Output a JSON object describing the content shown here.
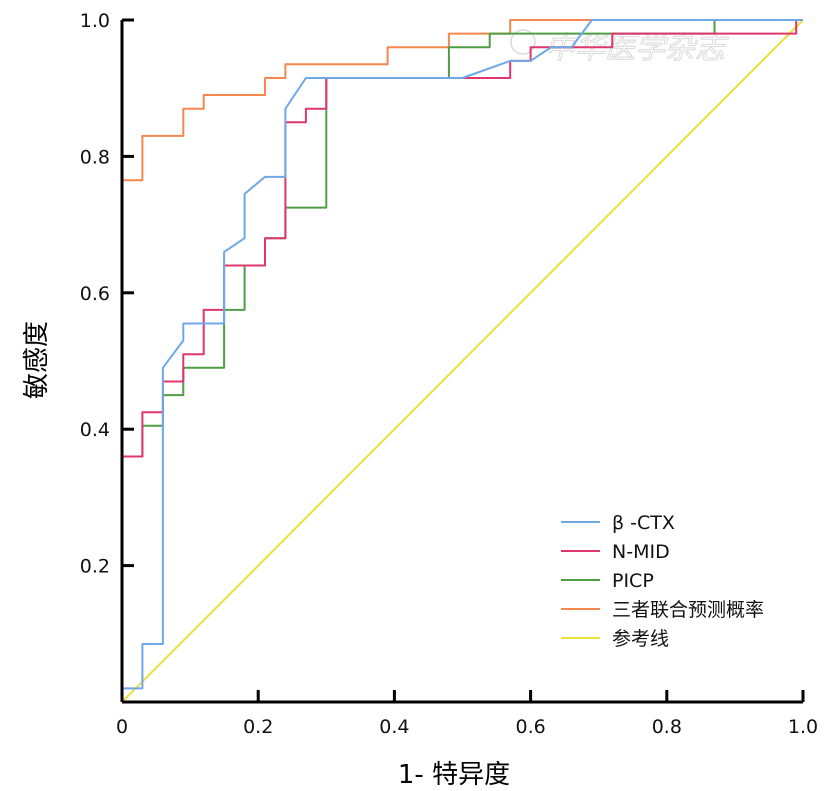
{
  "chart_data": {
    "type": "line",
    "title": "",
    "xlabel": "1- 特异度",
    "ylabel": "敏感度",
    "xlim": [
      0,
      1.0
    ],
    "ylim": [
      0,
      1.0
    ],
    "x_ticks": [
      "0",
      "0.2",
      "0.4",
      "0.6",
      "0.8",
      "1.0"
    ],
    "y_ticks": [
      "0.2",
      "0.4",
      "0.6",
      "0.8",
      "1.0"
    ],
    "legend_position": "bottom-right",
    "watermark": "中华医学杂志",
    "series": [
      {
        "name": "β -CTX",
        "color": "#6fa8e8",
        "points": [
          [
            0,
            0.02
          ],
          [
            0.03,
            0.02
          ],
          [
            0.03,
            0.085
          ],
          [
            0.06,
            0.085
          ],
          [
            0.06,
            0.49
          ],
          [
            0.09,
            0.53
          ],
          [
            0.09,
            0.555
          ],
          [
            0.15,
            0.555
          ],
          [
            0.15,
            0.66
          ],
          [
            0.18,
            0.68
          ],
          [
            0.18,
            0.745
          ],
          [
            0.21,
            0.77
          ],
          [
            0.24,
            0.77
          ],
          [
            0.24,
            0.87
          ],
          [
            0.27,
            0.915
          ],
          [
            0.3,
            0.915
          ],
          [
            0.48,
            0.915
          ],
          [
            0.5,
            0.915
          ],
          [
            0.57,
            0.94
          ],
          [
            0.6,
            0.94
          ],
          [
            0.63,
            0.96
          ],
          [
            0.66,
            0.96
          ],
          [
            0.69,
            1.0
          ],
          [
            1.0,
            1.0
          ]
        ]
      },
      {
        "name": "N-MID",
        "color": "#e0366e",
        "points": [
          [
            0,
            0.36
          ],
          [
            0.03,
            0.36
          ],
          [
            0.03,
            0.425
          ],
          [
            0.06,
            0.425
          ],
          [
            0.06,
            0.47
          ],
          [
            0.09,
            0.47
          ],
          [
            0.09,
            0.51
          ],
          [
            0.12,
            0.51
          ],
          [
            0.12,
            0.575
          ],
          [
            0.15,
            0.575
          ],
          [
            0.15,
            0.64
          ],
          [
            0.18,
            0.64
          ],
          [
            0.21,
            0.64
          ],
          [
            0.21,
            0.68
          ],
          [
            0.24,
            0.68
          ],
          [
            0.24,
            0.85
          ],
          [
            0.27,
            0.85
          ],
          [
            0.27,
            0.87
          ],
          [
            0.3,
            0.87
          ],
          [
            0.3,
            0.915
          ],
          [
            0.42,
            0.915
          ],
          [
            0.48,
            0.915
          ],
          [
            0.57,
            0.915
          ],
          [
            0.57,
            0.94
          ],
          [
            0.6,
            0.94
          ],
          [
            0.6,
            0.96
          ],
          [
            0.72,
            0.96
          ],
          [
            0.72,
            0.98
          ],
          [
            0.87,
            0.98
          ],
          [
            0.99,
            0.98
          ],
          [
            0.99,
            1.0
          ],
          [
            1.0,
            1.0
          ]
        ]
      },
      {
        "name": "PICP",
        "color": "#4f9e45",
        "points": [
          [
            0,
            0.36
          ],
          [
            0.03,
            0.36
          ],
          [
            0.03,
            0.405
          ],
          [
            0.06,
            0.405
          ],
          [
            0.06,
            0.45
          ],
          [
            0.09,
            0.45
          ],
          [
            0.09,
            0.49
          ],
          [
            0.15,
            0.49
          ],
          [
            0.15,
            0.575
          ],
          [
            0.18,
            0.575
          ],
          [
            0.18,
            0.64
          ],
          [
            0.21,
            0.64
          ],
          [
            0.21,
            0.68
          ],
          [
            0.24,
            0.68
          ],
          [
            0.24,
            0.725
          ],
          [
            0.3,
            0.725
          ],
          [
            0.3,
            0.915
          ],
          [
            0.48,
            0.915
          ],
          [
            0.48,
            0.96
          ],
          [
            0.54,
            0.96
          ],
          [
            0.54,
            0.98
          ],
          [
            0.57,
            0.98
          ],
          [
            0.87,
            0.98
          ],
          [
            0.87,
            1.0
          ],
          [
            1.0,
            1.0
          ]
        ]
      },
      {
        "name": "三者联合预测概率",
        "color": "#f5874f",
        "points": [
          [
            0,
            0.765
          ],
          [
            0.03,
            0.765
          ],
          [
            0.03,
            0.83
          ],
          [
            0.09,
            0.83
          ],
          [
            0.09,
            0.87
          ],
          [
            0.12,
            0.87
          ],
          [
            0.12,
            0.89
          ],
          [
            0.21,
            0.89
          ],
          [
            0.21,
            0.915
          ],
          [
            0.24,
            0.915
          ],
          [
            0.24,
            0.935
          ],
          [
            0.39,
            0.935
          ],
          [
            0.39,
            0.96
          ],
          [
            0.48,
            0.96
          ],
          [
            0.48,
            0.98
          ],
          [
            0.57,
            0.98
          ],
          [
            0.57,
            1.0
          ],
          [
            1.0,
            1.0
          ]
        ]
      },
      {
        "name": "参考线",
        "color": "#e8e23a",
        "points": [
          [
            0,
            0
          ],
          [
            1.0,
            1.0
          ]
        ]
      }
    ]
  }
}
